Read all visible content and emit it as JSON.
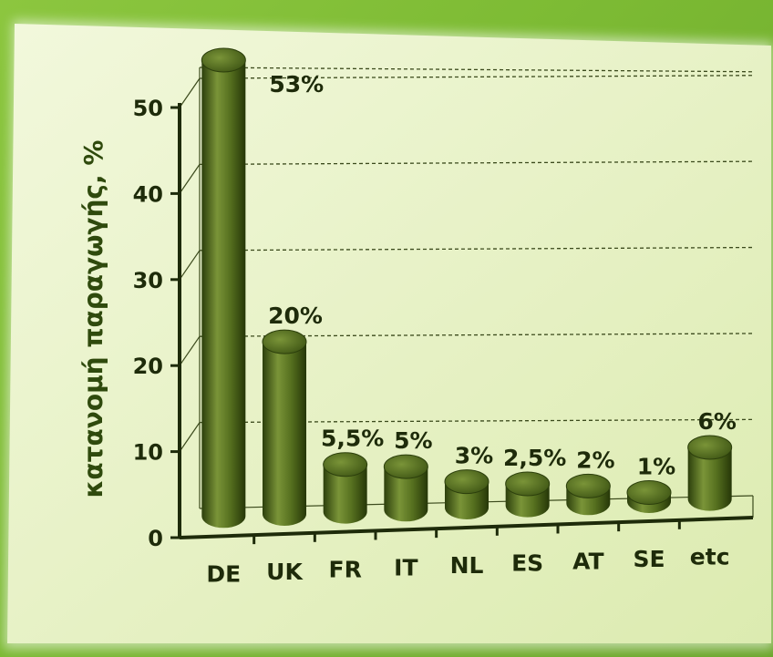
{
  "chart_data": {
    "type": "bar",
    "title": "",
    "xlabel": "",
    "ylabel": "κατανομή παραγωγής, %",
    "categories": [
      "DE",
      "UK",
      "FR",
      "IT",
      "NL",
      "ES",
      "AT",
      "SE",
      "etc"
    ],
    "values": [
      53,
      20,
      5.5,
      5,
      3,
      2.5,
      2,
      1,
      6
    ],
    "data_labels": [
      "53%",
      "20%",
      "5,5%",
      "5%",
      "3%",
      "2,5%",
      "2%",
      "1%",
      "6%"
    ],
    "yticks": [
      "0",
      "10",
      "20",
      "30",
      "40",
      "50"
    ],
    "ylim": [
      0,
      50
    ],
    "grid": true,
    "legend": "none",
    "colors": {
      "bar_light": "#7a9438",
      "bar_mid": "#56701f",
      "bar_dark": "#2c3f0c",
      "panel": "#eaf3c9",
      "grid": "#3b4a1c"
    }
  }
}
